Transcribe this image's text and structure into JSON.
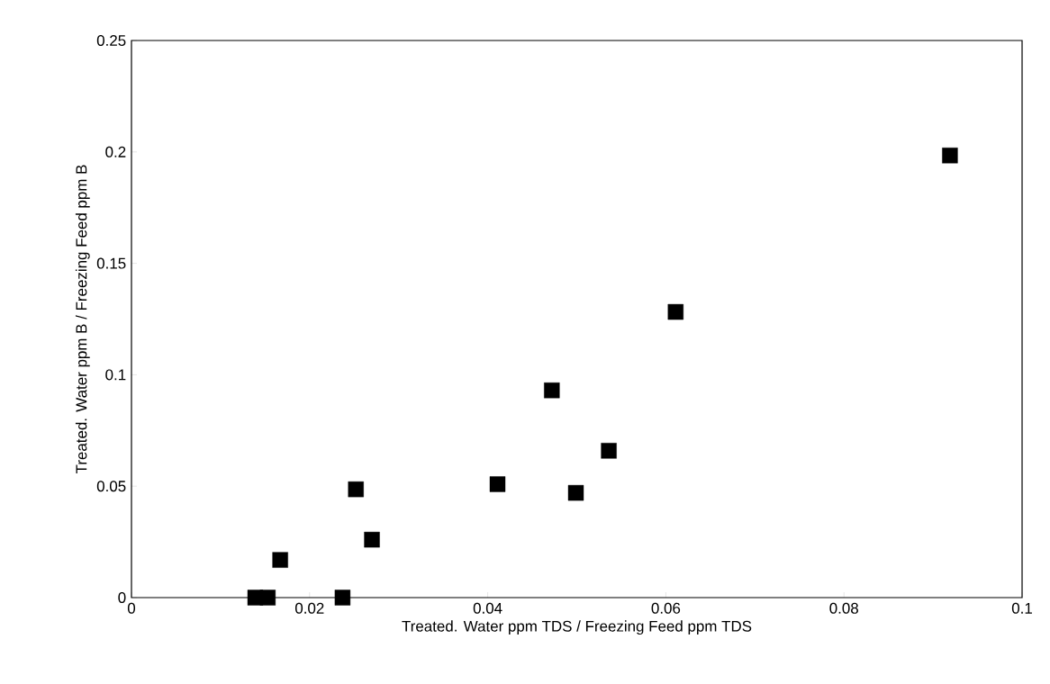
{
  "chart_data": {
    "type": "scatter",
    "xlabel": "Treated. Water ppm TDS /  Freezing Feed ppm TDS",
    "ylabel": "Treated. Water ppm B /  Freezing Feed ppm B",
    "x": [
      0.0139,
      0.0153,
      0.0167,
      0.0237,
      0.0252,
      0.027,
      0.0411,
      0.0472,
      0.0499,
      0.0536,
      0.0611,
      0.0919
    ],
    "values": [
      0,
      0,
      0.0169,
      0,
      0.0486,
      0.026,
      0.0509,
      0.093,
      0.047,
      0.0659,
      0.1282,
      0.1984
    ],
    "color": "#000000",
    "marker": "square",
    "xlim": [
      0,
      0.1
    ],
    "xticks": [
      0,
      0.02,
      0.04,
      0.06,
      0.08,
      0.1
    ],
    "ylim": [
      0,
      0.25
    ],
    "yticks": [
      0,
      0.05,
      0.1,
      0.15,
      0.2,
      0.25
    ],
    "grid": false
  }
}
